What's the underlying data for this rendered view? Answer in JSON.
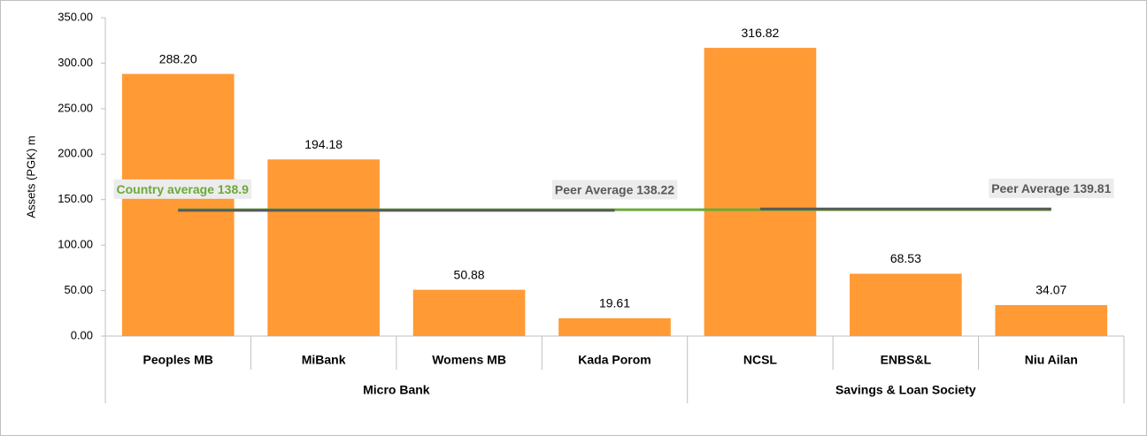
{
  "chart_data": {
    "type": "bar",
    "y_axis_label": "Assets (PGK) m",
    "ylim": [
      0,
      350
    ],
    "yticks": [
      {
        "value": 0,
        "label": "0.00"
      },
      {
        "value": 50,
        "label": "50.00"
      },
      {
        "value": 100,
        "label": "100.00"
      },
      {
        "value": 150,
        "label": "150.00"
      },
      {
        "value": 200,
        "label": "200.00"
      },
      {
        "value": 250,
        "label": "250.00"
      },
      {
        "value": 300,
        "label": "300.00"
      },
      {
        "value": 350,
        "label": "350.00"
      }
    ],
    "color": "#ff9a35",
    "groups": [
      {
        "name": "Micro Bank",
        "categories": [
          "Peoples MB",
          "MiBank",
          "Womens MB",
          "Kada Porom"
        ],
        "values": [
          288.2,
          194.18,
          50.88,
          19.61
        ],
        "value_labels": [
          "288.20",
          "194.18",
          "50.88",
          "19.61"
        ],
        "average": {
          "label": "Peer Average 138.22",
          "value": 138.22,
          "color": "#595959"
        }
      },
      {
        "name": "Savings & Loan Society",
        "categories": [
          "NCSL",
          "ENBS&L",
          "Niu Ailan"
        ],
        "values": [
          316.82,
          68.53,
          34.07
        ],
        "value_labels": [
          "316.82",
          "68.53",
          "34.07"
        ],
        "average": {
          "label": "Peer Average 139.81",
          "value": 139.81,
          "color": "#595959"
        }
      }
    ],
    "country_average": {
      "label": "Country average 138.9",
      "value": 138.9,
      "color": "#6aaa3a"
    }
  }
}
